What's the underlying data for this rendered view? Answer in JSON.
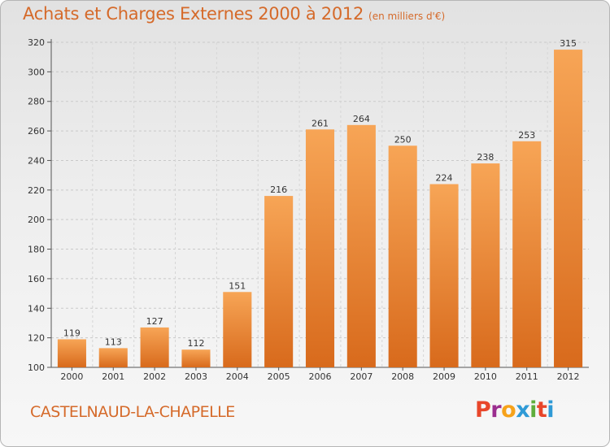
{
  "header": {
    "title": "Achats et Charges Externes 2000 à 2012",
    "unit": "(en milliers d'€)"
  },
  "footer": {
    "city": "CASTELNAUD-LA-CHAPELLE",
    "logo_text": "Proxiti",
    "logo_colors": [
      "#e8462a",
      "#9b2e8f",
      "#f6a21a",
      "#2f9ad6",
      "#5fae3c",
      "#e8462a",
      "#2f9ad6"
    ]
  },
  "chart_data": {
    "type": "bar",
    "categories": [
      "2000",
      "2001",
      "2002",
      "2003",
      "2004",
      "2005",
      "2006",
      "2007",
      "2008",
      "2009",
      "2010",
      "2011",
      "2012"
    ],
    "values": [
      119,
      113,
      127,
      112,
      151,
      216,
      261,
      264,
      250,
      224,
      238,
      253,
      315
    ],
    "ylim": [
      100,
      320
    ],
    "yticks": [
      100,
      120,
      140,
      160,
      180,
      200,
      220,
      240,
      260,
      280,
      300,
      320
    ],
    "grid": true,
    "bar_color": "#ee8a35"
  }
}
